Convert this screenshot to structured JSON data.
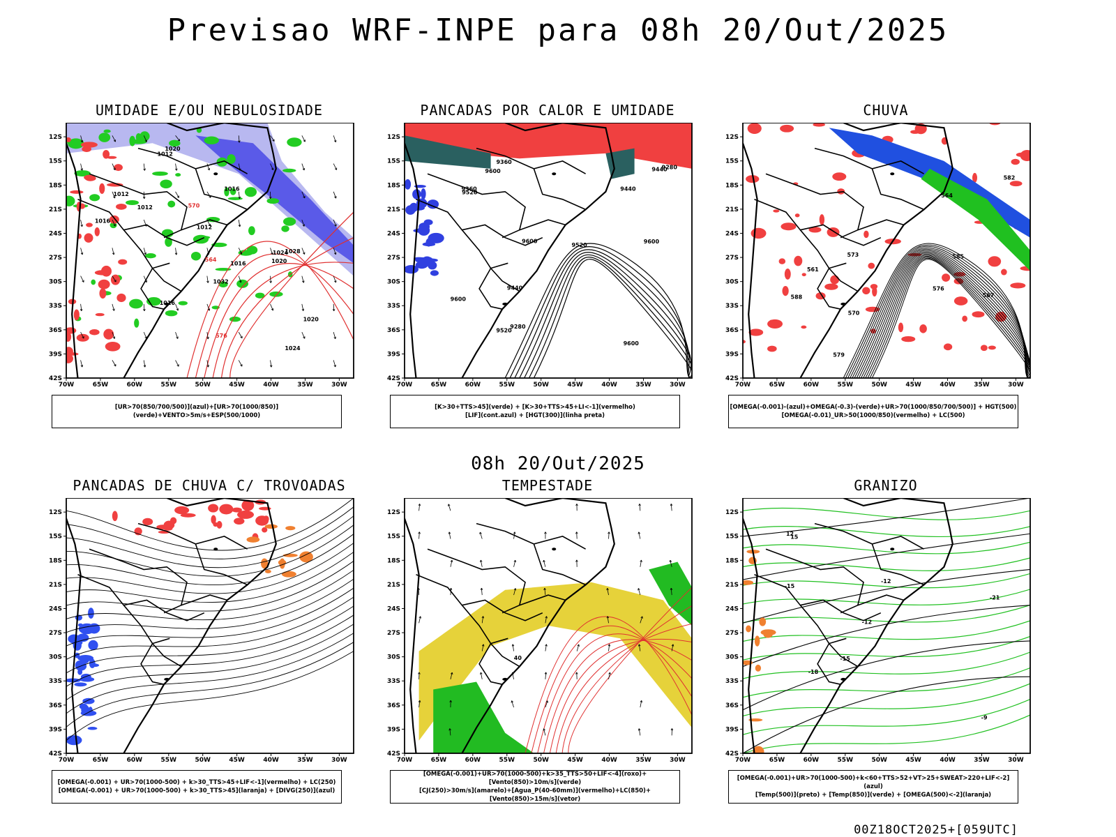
{
  "header": {
    "title": "Previsao WRF-INPE  para 08h 20/Out/2025"
  },
  "middle_label": "08h 20/Out/2025",
  "footer_label": "00Z18OCT2025+[059UTC]",
  "axes": {
    "lat_ticks": [
      "12S",
      "15S",
      "18S",
      "21S",
      "24S",
      "27S",
      "30S",
      "33S",
      "36S",
      "39S",
      "42S"
    ],
    "lon_ticks": [
      "70W",
      "65W",
      "60W",
      "55W",
      "50W",
      "45W",
      "40W",
      "35W",
      "30W"
    ]
  },
  "panels": [
    {
      "id": "umidade",
      "title": "UMIDADE E/OU NEBULOSIDADE",
      "legend": [
        "[UR>70(850/700/500)](azul)+[UR>70(1000/850)](verde)+VENTO>5m/s+ESP(500/1000)"
      ],
      "labels": [
        "1012",
        "1012",
        "1012",
        "1012",
        "1016",
        "1016",
        "1016",
        "1016",
        "1020",
        "1020",
        "1020",
        "1024",
        "1024",
        "1028",
        "1032",
        "576",
        "570",
        "564"
      ]
    },
    {
      "id": "pancadas-calor",
      "title": "PANCADAS POR CALOR E UMIDADE",
      "legend": [
        "[K>30+TTS>45](verde) + [K>30+TTS>45+LI<-1](vermelho)",
        "[LIF](cont.azul) + [HGT(300)](linha preta)"
      ],
      "labels": [
        "9600",
        "9600",
        "9600",
        "9600",
        "9600",
        "9520",
        "9520",
        "9520",
        "9440",
        "9440",
        "9440",
        "9360",
        "9360",
        "9280",
        "9280"
      ]
    },
    {
      "id": "chuva",
      "title": "CHUVA",
      "legend": [
        "[OMEGA(-0.001)-(azul)+OMEGA(-0.3)-(verde)+UR>70(1000/850/700/500)] + HGT(500)",
        "[OMEGA(-0.01)_UR>50(1000/850)(vermelho) + LC(500)"
      ],
      "labels": [
        "579",
        "576",
        "573",
        "570",
        "567",
        "564",
        "561",
        "582",
        "585",
        "588"
      ]
    },
    {
      "id": "trovoadas",
      "title": "PANCADAS DE CHUVA C/ TROVOADAS",
      "legend": [
        "[OMEGA(-0.001) + UR>70(1000-500) + k>30_TTS>45+LIF<-1](vermelho) + LC(250)",
        "[OMEGA(-0.001) + UR>70(1000-500) + k>30_TTS>45](laranja) + [DIVG(250)](azul)"
      ],
      "labels": []
    },
    {
      "id": "tempestade",
      "title": "TEMPESTADE",
      "legend": [
        "[OMEGA(-0.001)+UR>70(1000-500)+k>35_TTS>50+LIF<-4](roxo)+[Vento(850)>10m/s](verde)",
        "[CJ(250)>30m/s](amarelo)+[Agua_P(40-60mm)](vermelho)+LC(850)+[Vento(850)>15m/s](vetor)"
      ],
      "labels": [
        "40"
      ]
    },
    {
      "id": "granizo",
      "title": "GRANIZO",
      "legend": [
        "[OMEGA(-0.001)+UR>70(1000-500)+k<60+TTS>52+VT>25+SWEAT>220+LIF<-2](azul)",
        "[Temp(500)](preto) + [Temp(850)](verde) + [OMEGA(500)<-2](laranja)"
      ],
      "labels": [
        "-12",
        "-15",
        "-18",
        "-21",
        "-15",
        "-12",
        "-9",
        "12",
        "15"
      ]
    }
  ]
}
